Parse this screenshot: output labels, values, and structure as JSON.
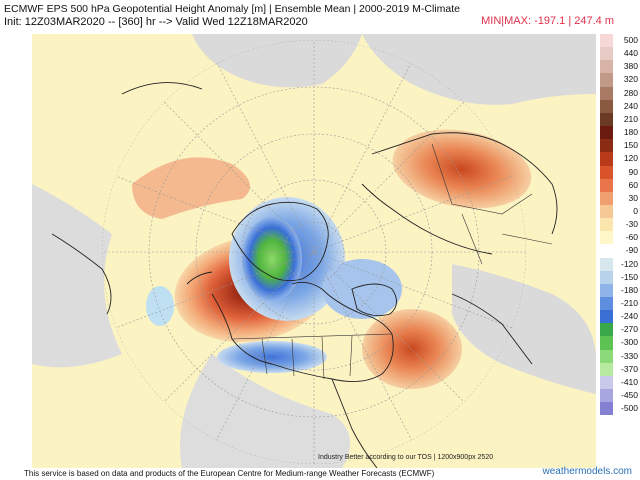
{
  "header": {
    "line1": "ECMWF EPS 500 hPa Geopotential Height Anomaly [m] | Ensemble Mean | 2000-2019 M-Climate",
    "line2": "Init: 12Z03MAR2020 -- [360] hr --> Valid Wed 12Z18MAR2020",
    "minmax": "MIN|MAX: -197.1 | 247.4 m"
  },
  "map": {
    "projection": "north-polar-stereographic",
    "credit_inmap": "Industry Better according to our TOS | 1200x900px 2520"
  },
  "legend": {
    "colors": [
      "#f7d8d8",
      "#e9cbc6",
      "#d8b3a8",
      "#c29a88",
      "#a87a63",
      "#8a5a40",
      "#6b3a22",
      "#6a1a0e",
      "#8c2b14",
      "#b83a1a",
      "#d9532b",
      "#e8764a",
      "#f0a070",
      "#f6c896",
      "#fbe6ad",
      "#fff7c8",
      "#ffffff",
      "#d8e6ee",
      "#b9d2ec",
      "#8fb4ea",
      "#5e8ee0",
      "#3a6fd6",
      "#38a84a",
      "#5cc251",
      "#8cd97a",
      "#b6ea9f",
      "#c9c9ea",
      "#a7a6e0",
      "#8481d2",
      "#5b58c4",
      "#3830b2",
      "#2a1c9a",
      "#3a1a7a",
      "#6a1a8a",
      "#9a22a6",
      "#c63bc2",
      "#e66fda"
    ],
    "labels": [
      "500",
      "440",
      "380",
      "320",
      "280",
      "240",
      "210",
      "180",
      "150",
      "120",
      "90",
      "60",
      "30",
      "0",
      "-30",
      "-60",
      "-90",
      "-120",
      "-150",
      "-180",
      "-210",
      "-240",
      "-270",
      "-300",
      "-330",
      "-370",
      "-410",
      "-450",
      "-500"
    ]
  },
  "footer": {
    "text": "This service is based on data and products of the European Centre for Medium-range Weather Forecasts (ECMWF)",
    "brand": "weathermodels.com"
  }
}
